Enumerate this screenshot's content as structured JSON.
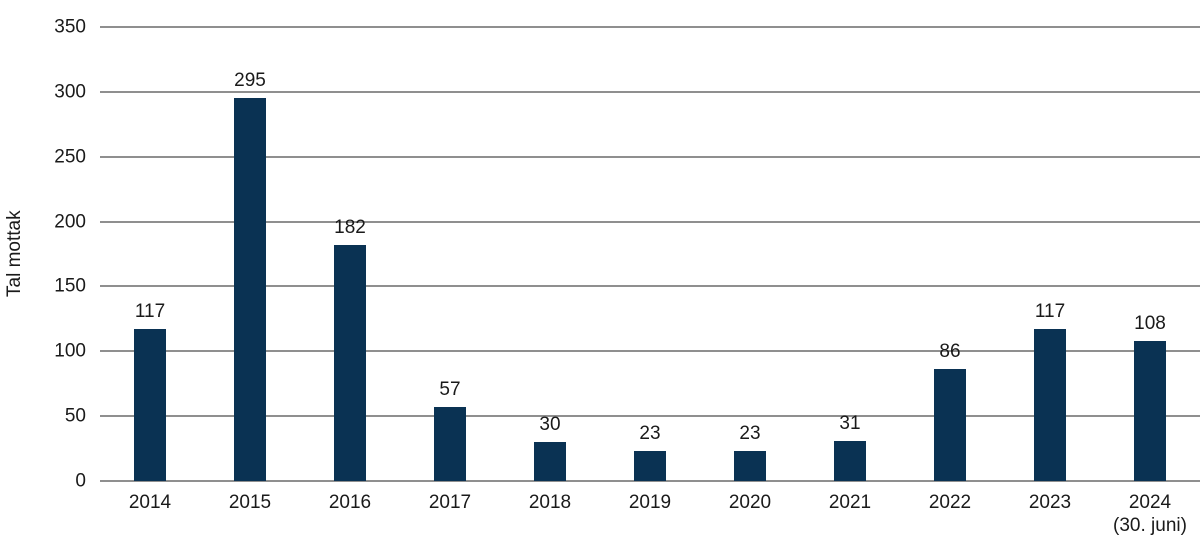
{
  "chart_data": {
    "type": "bar",
    "title": "",
    "xlabel": "",
    "ylabel": "Tal mottak",
    "ylim": [
      0,
      350
    ],
    "yticks": [
      0,
      50,
      100,
      150,
      200,
      250,
      300,
      350
    ],
    "grid": "horizontal",
    "legend": "none",
    "data_labels": true,
    "categories": [
      "2014",
      "2015",
      "2016",
      "2017",
      "2018",
      "2019",
      "2020",
      "2021",
      "2022",
      "2023",
      "2024"
    ],
    "category_sublabels": [
      "",
      "",
      "",
      "",
      "",
      "",
      "",
      "",
      "",
      "",
      "(30. juni)"
    ],
    "values": [
      117,
      295,
      182,
      57,
      30,
      23,
      23,
      31,
      86,
      117,
      108
    ],
    "colors": {
      "bar": "#0a3253",
      "gridline": "#8f8f8f",
      "text": "#1a1a1a",
      "background": "#ffffff"
    }
  }
}
